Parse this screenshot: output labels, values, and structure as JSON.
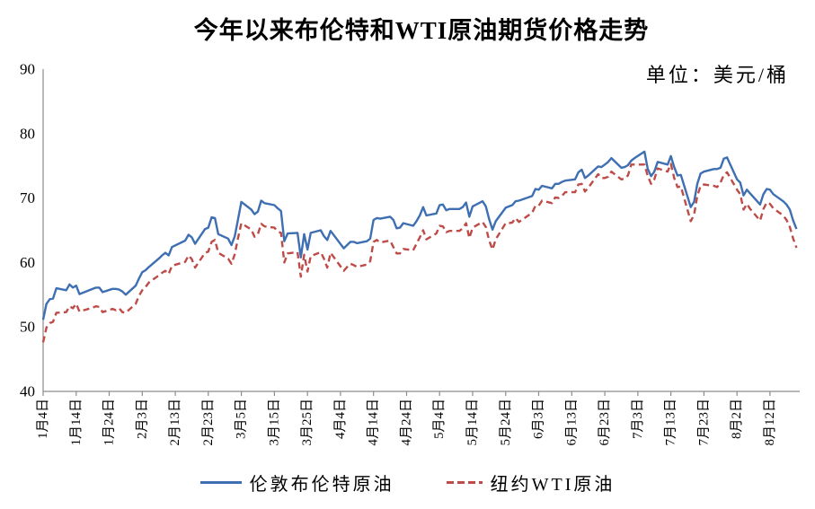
{
  "chart_data": {
    "type": "line",
    "title": "今年以来布伦特和WTI原油期货价格走势",
    "unit_label": "单位：美元/桶",
    "ylim": [
      40,
      90
    ],
    "y_ticks": [
      40,
      50,
      60,
      70,
      80,
      90
    ],
    "grid": false,
    "legend_position": "bottom",
    "axis_color": "#8c8c8c",
    "text_color": "#000000",
    "x_tick_labels": [
      "1月4日",
      "1月14日",
      "1月24日",
      "2月3日",
      "2月13日",
      "2月23日",
      "3月5日",
      "3月15日",
      "3月25日",
      "4月4日",
      "4月14日",
      "4月24日",
      "5月4日",
      "5月14日",
      "5月24日",
      "6月3日",
      "6月13日",
      "6月23日",
      "7月3日",
      "7月13日",
      "7月23日",
      "8月2日",
      "8月12日"
    ],
    "x_tick_days": [
      0,
      10,
      20,
      30,
      40,
      50,
      60,
      70,
      80,
      90,
      100,
      110,
      120,
      130,
      140,
      150,
      160,
      170,
      180,
      190,
      200,
      210,
      220
    ],
    "dates": [
      "1-4",
      "1-5",
      "1-6",
      "1-7",
      "1-8",
      "1-11",
      "1-12",
      "1-13",
      "1-14",
      "1-15",
      "1-19",
      "1-20",
      "1-21",
      "1-22",
      "1-25",
      "1-26",
      "1-27",
      "1-28",
      "1-29",
      "2-1",
      "2-2",
      "2-3",
      "2-4",
      "2-5",
      "2-8",
      "2-9",
      "2-10",
      "2-11",
      "2-12",
      "2-16",
      "2-17",
      "2-18",
      "2-19",
      "2-22",
      "2-23",
      "2-24",
      "2-25",
      "2-26",
      "3-1",
      "3-2",
      "3-3",
      "3-4",
      "3-5",
      "3-8",
      "3-9",
      "3-10",
      "3-11",
      "3-12",
      "3-15",
      "3-16",
      "3-17",
      "3-18",
      "3-19",
      "3-22",
      "3-23",
      "3-24",
      "3-25",
      "3-26",
      "3-29",
      "3-30",
      "3-31",
      "4-1",
      "4-5",
      "4-6",
      "4-7",
      "4-8",
      "4-9",
      "4-12",
      "4-13",
      "4-14",
      "4-15",
      "4-16",
      "4-19",
      "4-20",
      "4-21",
      "4-22",
      "4-23",
      "4-26",
      "4-27",
      "4-28",
      "4-29",
      "4-30",
      "5-3",
      "5-4",
      "5-5",
      "5-6",
      "5-7",
      "5-10",
      "5-11",
      "5-12",
      "5-13",
      "5-14",
      "5-17",
      "5-18",
      "5-19",
      "5-20",
      "5-21",
      "5-24",
      "5-25",
      "5-26",
      "5-27",
      "5-28",
      "6-1",
      "6-2",
      "6-3",
      "6-4",
      "6-7",
      "6-8",
      "6-9",
      "6-10",
      "6-11",
      "6-14",
      "6-15",
      "6-16",
      "6-17",
      "6-18",
      "6-21",
      "6-22",
      "6-23",
      "6-24",
      "6-25",
      "6-28",
      "6-29",
      "6-30",
      "7-1",
      "7-2",
      "7-5",
      "7-6",
      "7-7",
      "7-8",
      "7-9",
      "7-12",
      "7-13",
      "7-14",
      "7-15",
      "7-16",
      "7-19",
      "7-20",
      "7-21",
      "7-22",
      "7-23",
      "7-26",
      "7-27",
      "7-28",
      "7-29",
      "7-30",
      "8-2",
      "8-3",
      "8-4",
      "8-5",
      "8-6",
      "8-9",
      "8-10",
      "8-11",
      "8-12",
      "8-13",
      "8-16",
      "8-17",
      "8-18",
      "8-19",
      "8-20"
    ],
    "series": [
      {
        "name": "伦敦布伦特原油",
        "color": "#3e6fb2",
        "style": "solid",
        "values": [
          51.1,
          53.6,
          54.3,
          54.4,
          56.0,
          55.7,
          56.6,
          56.1,
          56.4,
          55.1,
          55.9,
          56.1,
          56.1,
          55.4,
          55.9,
          55.9,
          55.8,
          55.5,
          55.0,
          56.4,
          57.5,
          58.5,
          58.8,
          59.3,
          60.6,
          61.1,
          61.5,
          61.1,
          62.4,
          63.4,
          64.3,
          63.9,
          62.9,
          65.2,
          65.4,
          67.0,
          66.9,
          64.4,
          63.7,
          62.7,
          64.1,
          66.7,
          69.4,
          68.2,
          67.5,
          67.9,
          69.6,
          69.2,
          68.9,
          68.4,
          68.0,
          63.3,
          64.5,
          64.6,
          60.8,
          64.4,
          62.0,
          64.6,
          65.0,
          64.1,
          63.5,
          64.9,
          62.2,
          62.7,
          63.2,
          63.2,
          63.0,
          63.3,
          63.7,
          66.6,
          66.9,
          66.8,
          67.1,
          66.6,
          65.3,
          65.4,
          66.1,
          65.7,
          66.4,
          67.3,
          68.6,
          67.3,
          67.6,
          68.9,
          69.0,
          68.1,
          68.3,
          68.3,
          68.6,
          69.3,
          67.1,
          68.7,
          69.5,
          68.7,
          66.7,
          65.1,
          66.4,
          68.5,
          68.7,
          68.9,
          69.5,
          69.6,
          70.3,
          71.4,
          71.3,
          71.9,
          71.5,
          72.2,
          72.2,
          72.5,
          72.7,
          72.9,
          74.0,
          74.4,
          73.1,
          73.5,
          74.9,
          74.8,
          75.2,
          75.6,
          76.2,
          74.7,
          74.8,
          75.1,
          75.8,
          76.2,
          77.2,
          74.5,
          73.4,
          74.1,
          75.6,
          75.2,
          76.5,
          74.8,
          73.5,
          73.6,
          68.6,
          69.4,
          72.2,
          73.8,
          74.1,
          74.5,
          74.5,
          74.7,
          76.1,
          76.3,
          72.9,
          72.4,
          70.4,
          71.3,
          70.7,
          69.0,
          70.6,
          71.4,
          71.3,
          70.6,
          69.5,
          69.0,
          68.2,
          66.5,
          65.2
        ]
      },
      {
        "name": "纽约WTI原油",
        "color": "#be4b48",
        "style": "dashed",
        "values": [
          47.6,
          49.9,
          50.6,
          50.8,
          52.2,
          52.3,
          53.2,
          52.9,
          53.6,
          52.4,
          53.0,
          53.2,
          53.1,
          52.3,
          52.8,
          52.6,
          52.9,
          52.3,
          52.2,
          53.6,
          54.8,
          55.7,
          56.2,
          56.9,
          58.0,
          58.4,
          58.7,
          58.2,
          59.5,
          60.1,
          61.1,
          60.5,
          59.2,
          61.5,
          61.7,
          63.2,
          63.5,
          61.5,
          60.6,
          59.8,
          61.3,
          63.8,
          66.1,
          65.1,
          64.0,
          64.4,
          66.0,
          65.6,
          65.4,
          64.8,
          64.6,
          60.0,
          61.4,
          61.6,
          57.8,
          61.2,
          58.6,
          61.0,
          61.6,
          60.6,
          59.2,
          61.5,
          58.7,
          59.3,
          59.8,
          59.6,
          59.3,
          59.7,
          60.2,
          63.2,
          63.5,
          63.1,
          63.4,
          62.4,
          61.4,
          61.4,
          62.1,
          61.9,
          62.9,
          63.9,
          65.0,
          63.6,
          64.5,
          65.7,
          65.6,
          64.7,
          64.9,
          64.9,
          65.3,
          66.1,
          63.8,
          65.4,
          66.3,
          65.5,
          63.4,
          62.0,
          63.6,
          66.1,
          66.1,
          66.2,
          66.9,
          66.3,
          67.7,
          68.8,
          68.8,
          69.6,
          69.2,
          70.1,
          70.0,
          70.3,
          70.9,
          70.9,
          72.1,
          72.2,
          71.0,
          71.6,
          73.7,
          73.1,
          73.1,
          73.3,
          74.1,
          72.9,
          73.0,
          73.5,
          75.2,
          75.2,
          75.2,
          73.4,
          72.2,
          72.9,
          74.6,
          74.1,
          75.3,
          73.1,
          71.7,
          71.8,
          66.4,
          67.4,
          70.3,
          71.9,
          72.1,
          71.9,
          71.7,
          72.4,
          73.6,
          74.0,
          71.3,
          70.6,
          68.2,
          69.1,
          68.3,
          66.5,
          68.3,
          69.3,
          69.1,
          68.4,
          67.3,
          66.6,
          65.5,
          63.7,
          62.3
        ]
      }
    ]
  }
}
